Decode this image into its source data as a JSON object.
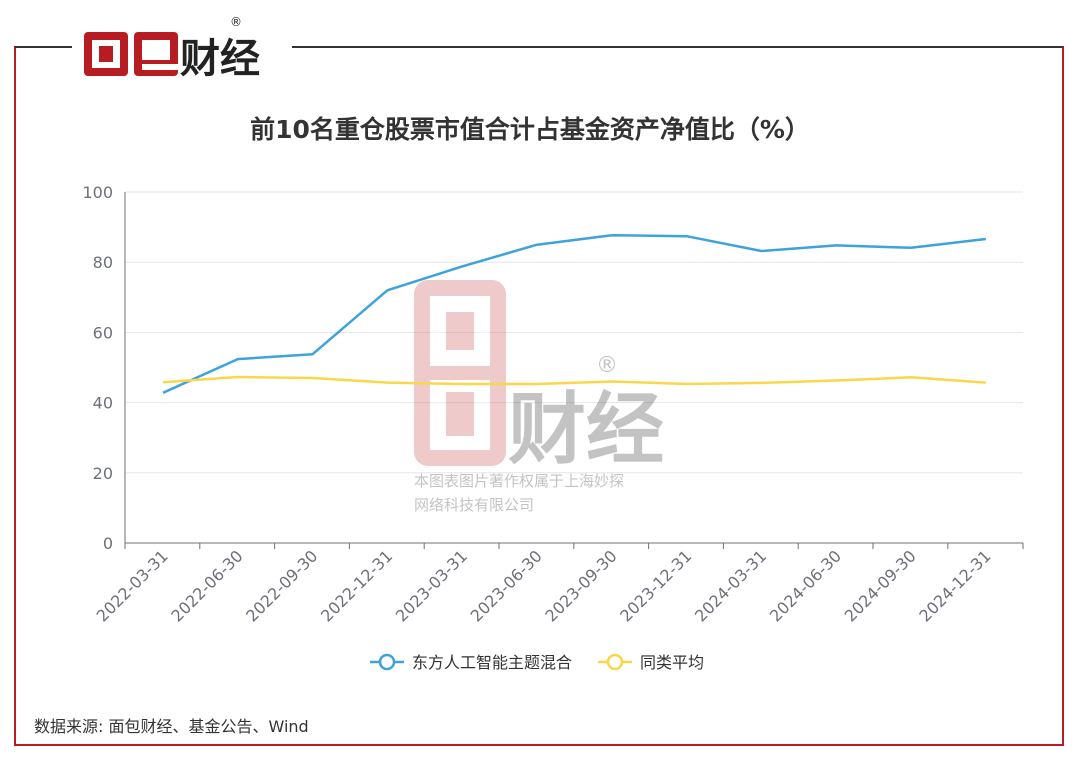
{
  "brand": {
    "name": "面包财经",
    "registered": "®"
  },
  "watermark": {
    "line1": "本图表图片著作权属于上海妙探",
    "line2": "网络科技有限公司",
    "brand": "面包财经"
  },
  "source_note": "数据来源: 面包财经、基金公告、Wind",
  "colors": {
    "series1": "#3ea2db",
    "series2": "#f9d64a",
    "brand_red": "#b61c22"
  },
  "chart_data": {
    "type": "line",
    "title": "前10名重仓股票市值合计占基金资产净值比（%）",
    "xlabel": "",
    "ylabel": "",
    "ylim": [
      0,
      100
    ],
    "yticks": [
      0,
      20,
      40,
      60,
      80,
      100
    ],
    "grid": true,
    "legend_position": "bottom",
    "x": [
      "2022-03-31",
      "2022-06-30",
      "2022-09-30",
      "2022-12-31",
      "2023-03-31",
      "2023-06-30",
      "2023-09-30",
      "2023-12-31",
      "2024-03-31",
      "2024-06-30",
      "2024-09-30",
      "2024-12-31"
    ],
    "series": [
      {
        "name": "东方人工智能主题混合",
        "values": [
          42.8,
          52.4,
          53.8,
          72.0,
          78.8,
          85.0,
          87.7,
          87.4,
          83.2,
          84.8,
          84.1,
          86.6
        ]
      },
      {
        "name": "同类平均",
        "values": [
          45.8,
          47.3,
          47.0,
          45.7,
          45.3,
          45.3,
          46.0,
          45.3,
          45.6,
          46.3,
          47.2,
          45.7
        ]
      }
    ]
  }
}
